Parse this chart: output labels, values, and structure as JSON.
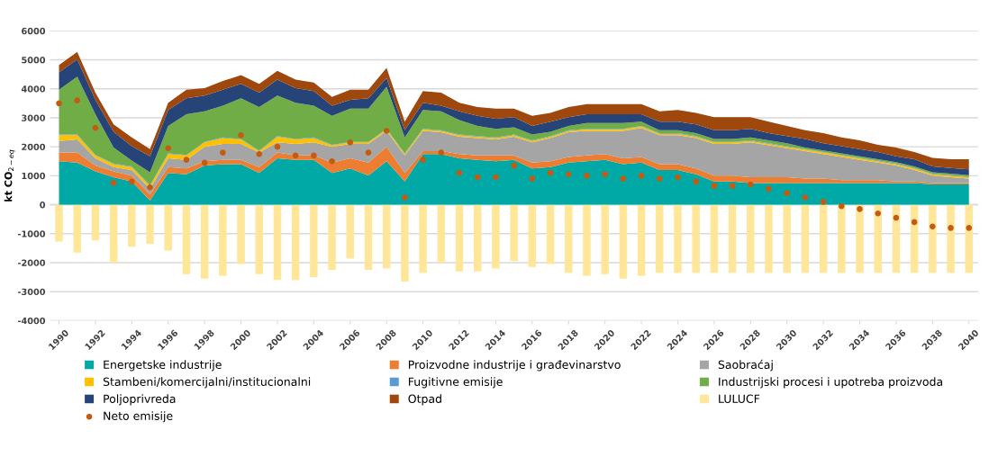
{
  "chart_data": {
    "type": "area",
    "stacked": true,
    "ylabel": "kt CO$_{2−eq}$",
    "x": [
      1990,
      1991,
      1992,
      1993,
      1994,
      1995,
      1996,
      1997,
      1998,
      1999,
      2000,
      2001,
      2002,
      2003,
      2004,
      2005,
      2006,
      2007,
      2008,
      2009,
      2010,
      2011,
      2012,
      2013,
      2014,
      2015,
      2016,
      2017,
      2018,
      2019,
      2020,
      2021,
      2022,
      2023,
      2024,
      2025,
      2026,
      2027,
      2028,
      2029,
      2030,
      2031,
      2032,
      2033,
      2034,
      2035,
      2036,
      2037,
      2038,
      2039,
      2040
    ],
    "xlim": [
      1989.5,
      2040.5
    ],
    "xticks": [
      1990,
      1992,
      1994,
      1996,
      1998,
      2000,
      2002,
      2004,
      2006,
      2008,
      2010,
      2012,
      2014,
      2016,
      2018,
      2020,
      2022,
      2024,
      2026,
      2028,
      2030,
      2032,
      2034,
      2036,
      2038,
      2040
    ],
    "ylim": [
      -4000,
      6000
    ],
    "yticks": [
      -4000,
      -3000,
      -2000,
      -1000,
      0,
      1000,
      2000,
      3000,
      4000,
      5000,
      6000
    ],
    "grid": "y",
    "legend": "bottom",
    "series": [
      {
        "name": "Energetske industrije",
        "color": "#00a9a5",
        "values": [
          1500,
          1450,
          1150,
          950,
          800,
          150,
          1100,
          1050,
          1350,
          1400,
          1400,
          1100,
          1600,
          1550,
          1550,
          1100,
          1250,
          1000,
          1500,
          800,
          1750,
          1750,
          1600,
          1550,
          1500,
          1550,
          1250,
          1300,
          1450,
          1500,
          1550,
          1400,
          1450,
          1200,
          1200,
          1050,
          800,
          800,
          750,
          750,
          750,
          750,
          750,
          750,
          750,
          750,
          750,
          750,
          700,
          700,
          700
        ]
      },
      {
        "name": "Proizvodne industrije i građevinarstvo",
        "color": "#ed7d31",
        "values": [
          300,
          350,
          200,
          200,
          200,
          200,
          200,
          200,
          150,
          150,
          150,
          200,
          200,
          150,
          150,
          350,
          350,
          450,
          500,
          300,
          100,
          100,
          150,
          150,
          200,
          150,
          200,
          200,
          200,
          200,
          200,
          200,
          200,
          200,
          200,
          200,
          200,
          200,
          200,
          200,
          200,
          150,
          150,
          100,
          100,
          100,
          50,
          50,
          50,
          50,
          50
        ]
      },
      {
        "name": "Saobraćaj",
        "color": "#a5a5a5",
        "values": [
          400,
          450,
          250,
          150,
          200,
          200,
          300,
          300,
          500,
          550,
          550,
          500,
          350,
          400,
          450,
          550,
          500,
          650,
          550,
          600,
          700,
          650,
          600,
          600,
          550,
          650,
          700,
          800,
          850,
          850,
          800,
          950,
          1000,
          1000,
          1000,
          1050,
          1100,
          1100,
          1200,
          1100,
          1000,
          950,
          850,
          800,
          700,
          600,
          550,
          400,
          250,
          200,
          150
        ]
      },
      {
        "name": "Stambeni/komercijalni/institucionalni",
        "color": "#ffc000",
        "values": [
          200,
          150,
          100,
          100,
          100,
          100,
          150,
          150,
          150,
          200,
          150,
          50,
          200,
          150,
          150,
          50,
          50,
          50,
          50,
          50,
          50,
          50,
          50,
          50,
          50,
          50,
          50,
          50,
          50,
          50,
          50,
          50,
          50,
          50,
          50,
          50,
          50,
          50,
          50,
          50,
          50,
          50,
          50,
          50,
          50,
          50,
          50,
          50,
          50,
          50,
          50
        ]
      },
      {
        "name": "Fugitivne emisije",
        "color": "#5b9bd5",
        "values": [
          20,
          20,
          20,
          20,
          20,
          20,
          20,
          20,
          20,
          20,
          20,
          20,
          20,
          20,
          20,
          20,
          20,
          20,
          20,
          20,
          20,
          20,
          20,
          20,
          20,
          20,
          20,
          20,
          20,
          20,
          20,
          20,
          20,
          20,
          20,
          20,
          20,
          20,
          20,
          20,
          20,
          20,
          20,
          20,
          20,
          20,
          20,
          20,
          20,
          20,
          20
        ]
      },
      {
        "name": "Industrijski procesi i upotreba proizvoda",
        "color": "#70ad47",
        "values": [
          1550,
          2000,
          1400,
          550,
          200,
          450,
          950,
          1400,
          1050,
          1100,
          1400,
          1500,
          1400,
          1250,
          1100,
          1000,
          1150,
          1150,
          1450,
          550,
          650,
          650,
          500,
          350,
          300,
          250,
          200,
          150,
          150,
          200,
          200,
          200,
          150,
          100,
          100,
          100,
          100,
          100,
          100,
          100,
          100,
          50,
          50,
          50,
          50,
          50,
          50,
          50,
          50,
          50,
          50
        ]
      },
      {
        "name": "Poljoprivreda",
        "color": "#264478",
        "values": [
          600,
          600,
          500,
          550,
          500,
          550,
          550,
          550,
          550,
          550,
          500,
          500,
          550,
          500,
          500,
          350,
          300,
          350,
          300,
          250,
          250,
          200,
          300,
          350,
          350,
          350,
          300,
          350,
          300,
          300,
          300,
          300,
          250,
          300,
          300,
          300,
          300,
          300,
          300,
          250,
          250,
          300,
          250,
          250,
          250,
          250,
          200,
          250,
          200,
          200,
          200
        ]
      },
      {
        "name": "Otpad",
        "color": "#9e480e",
        "values": [
          250,
          250,
          250,
          250,
          300,
          250,
          250,
          300,
          250,
          300,
          300,
          300,
          300,
          300,
          300,
          300,
          350,
          300,
          350,
          300,
          400,
          450,
          300,
          300,
          350,
          300,
          350,
          300,
          350,
          350,
          350,
          350,
          350,
          350,
          400,
          400,
          450,
          450,
          400,
          400,
          350,
          300,
          350,
          300,
          300,
          250,
          300,
          250,
          300,
          300,
          350
        ]
      },
      {
        "name": "LULUCF",
        "type": "bar",
        "color": "#ffe699",
        "values": [
          -1270,
          -1650,
          -1230,
          -2000,
          -1450,
          -1350,
          -1580,
          -2400,
          -2550,
          -2450,
          -2050,
          -2400,
          -2600,
          -2600,
          -2500,
          -2250,
          -1850,
          -2250,
          -2200,
          -2650,
          -2350,
          -2000,
          -2300,
          -2300,
          -2200,
          -1950,
          -2150,
          -2050,
          -2350,
          -2450,
          -2400,
          -2550,
          -2450,
          -2350,
          -2350,
          -2350,
          -2350,
          -2350,
          -2350,
          -2350,
          -2350,
          -2350,
          -2350,
          -2350,
          -2350,
          -2350,
          -2350,
          -2350,
          -2350,
          -2350,
          -2350
        ]
      },
      {
        "name": "Neto emisije",
        "type": "scatter",
        "marker": "circle",
        "color": "#c55a11",
        "values": [
          3500,
          3600,
          2650,
          750,
          800,
          600,
          1950,
          1550,
          1450,
          1800,
          2400,
          1750,
          2000,
          1700,
          1700,
          1500,
          2150,
          1800,
          2550,
          250,
          1550,
          1800,
          1100,
          950,
          950,
          1350,
          900,
          1100,
          1050,
          1000,
          1050,
          900,
          1000,
          900,
          950,
          800,
          650,
          650,
          700,
          550,
          400,
          250,
          100,
          -50,
          -150,
          -300,
          -450,
          -600,
          -750,
          -800,
          -800
        ]
      }
    ]
  }
}
